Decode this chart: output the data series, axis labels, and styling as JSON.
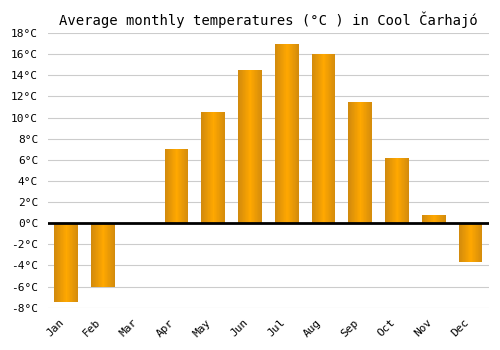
{
  "title": "Average monthly temperatures (°C ) in Cool Čarhajó",
  "months": [
    "Jan",
    "Feb",
    "Mar",
    "Apr",
    "May",
    "Jun",
    "Jul",
    "Aug",
    "Sep",
    "Oct",
    "Nov",
    "Dec"
  ],
  "values": [
    -7.5,
    -6.0,
    0.0,
    7.0,
    10.5,
    14.5,
    17.0,
    16.0,
    11.5,
    6.2,
    0.8,
    -3.7
  ],
  "bar_color": "#FFA830",
  "ylim": [
    -8,
    18
  ],
  "yticks": [
    -8,
    -6,
    -4,
    -2,
    0,
    2,
    4,
    6,
    8,
    10,
    12,
    14,
    16,
    18
  ],
  "ytick_labels": [
    "-8°C",
    "-6°C",
    "-4°C",
    "-2°C",
    "0°C",
    "2°C",
    "4°C",
    "6°C",
    "8°C",
    "10°C",
    "12°C",
    "14°C",
    "16°C",
    "18°C"
  ],
  "background_color": "#ffffff",
  "grid_color": "#cccccc",
  "title_fontsize": 10,
  "bar_width": 0.65
}
